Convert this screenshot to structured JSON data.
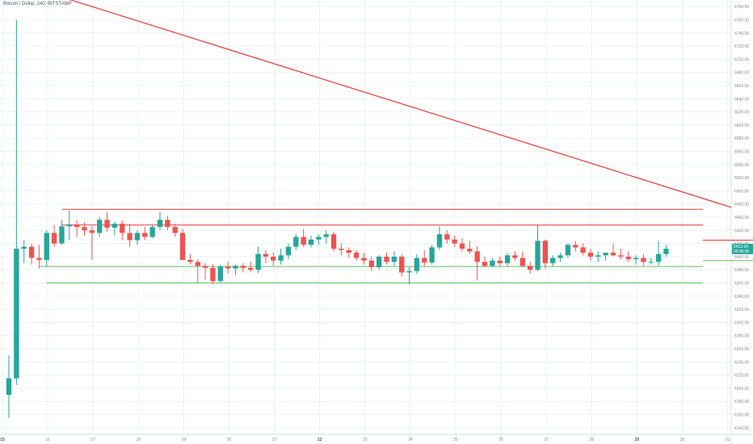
{
  "header": {
    "title": "Bitcoin / Dollar, 240, BITSTAMP"
  },
  "colors": {
    "up": "#26a69a",
    "down": "#ef5350",
    "grid": "#eef1f4",
    "resistance": "#e53935",
    "support": "#66bb6a",
    "price_tag": "#26a69a"
  },
  "chart_data": {
    "type": "candlestick",
    "title": "Bitcoin / Dollar, 240, BITSTAMP",
    "ylim": [
      6130,
      6790
    ],
    "y_ticks": [
      6140,
      6160,
      6180,
      6200,
      6220,
      6240,
      6260,
      6280,
      6300,
      6320,
      6340,
      6360,
      6380,
      6400,
      6420,
      6440,
      6460,
      6480,
      6500,
      6520,
      6540,
      6560,
      6580,
      6600,
      6620,
      6640,
      6660,
      6680,
      6700,
      6720,
      6740,
      6760,
      6780
    ],
    "x_labels": [
      "15",
      "16",
      "17",
      "18",
      "19",
      "20",
      "21",
      "22",
      "23",
      "24",
      "25",
      "26",
      "27",
      "28",
      "29",
      "30",
      "31"
    ],
    "x_bold": [
      "15",
      "22",
      "29"
    ],
    "last_price": {
      "value": 6412.34,
      "label": "6412.34",
      "sub_label": "00:40:45"
    },
    "candles": [
      {
        "o": 6190,
        "h": 6250,
        "l": 6155,
        "c": 6215
      },
      {
        "o": 6215,
        "h": 6760,
        "l": 6205,
        "c": 6412
      },
      {
        "o": 6412,
        "h": 6425,
        "l": 6390,
        "c": 6415
      },
      {
        "o": 6415,
        "h": 6420,
        "l": 6388,
        "c": 6398
      },
      {
        "o": 6398,
        "h": 6418,
        "l": 6382,
        "c": 6395
      },
      {
        "o": 6395,
        "h": 6440,
        "l": 6385,
        "c": 6436
      },
      {
        "o": 6436,
        "h": 6448,
        "l": 6415,
        "c": 6420
      },
      {
        "o": 6420,
        "h": 6456,
        "l": 6418,
        "c": 6446
      },
      {
        "o": 6446,
        "h": 6470,
        "l": 6425,
        "c": 6449
      },
      {
        "o": 6449,
        "h": 6455,
        "l": 6430,
        "c": 6445
      },
      {
        "o": 6445,
        "h": 6452,
        "l": 6432,
        "c": 6440
      },
      {
        "o": 6440,
        "h": 6446,
        "l": 6395,
        "c": 6436
      },
      {
        "o": 6436,
        "h": 6460,
        "l": 6430,
        "c": 6456
      },
      {
        "o": 6456,
        "h": 6468,
        "l": 6438,
        "c": 6444
      },
      {
        "o": 6444,
        "h": 6453,
        "l": 6432,
        "c": 6450
      },
      {
        "o": 6450,
        "h": 6455,
        "l": 6425,
        "c": 6436
      },
      {
        "o": 6436,
        "h": 6450,
        "l": 6415,
        "c": 6425
      },
      {
        "o": 6425,
        "h": 6440,
        "l": 6418,
        "c": 6436
      },
      {
        "o": 6436,
        "h": 6445,
        "l": 6425,
        "c": 6430
      },
      {
        "o": 6430,
        "h": 6448,
        "l": 6428,
        "c": 6445
      },
      {
        "o": 6445,
        "h": 6468,
        "l": 6440,
        "c": 6456
      },
      {
        "o": 6456,
        "h": 6462,
        "l": 6440,
        "c": 6445
      },
      {
        "o": 6445,
        "h": 6450,
        "l": 6430,
        "c": 6436
      },
      {
        "o": 6436,
        "h": 6442,
        "l": 6395,
        "c": 6395
      },
      {
        "o": 6395,
        "h": 6404,
        "l": 6388,
        "c": 6392
      },
      {
        "o": 6392,
        "h": 6396,
        "l": 6360,
        "c": 6386
      },
      {
        "o": 6386,
        "h": 6390,
        "l": 6365,
        "c": 6383
      },
      {
        "o": 6383,
        "h": 6388,
        "l": 6358,
        "c": 6363
      },
      {
        "o": 6363,
        "h": 6388,
        "l": 6360,
        "c": 6385
      },
      {
        "o": 6385,
        "h": 6392,
        "l": 6374,
        "c": 6382
      },
      {
        "o": 6382,
        "h": 6388,
        "l": 6372,
        "c": 6386
      },
      {
        "o": 6386,
        "h": 6390,
        "l": 6376,
        "c": 6383
      },
      {
        "o": 6383,
        "h": 6392,
        "l": 6376,
        "c": 6380
      },
      {
        "o": 6380,
        "h": 6415,
        "l": 6375,
        "c": 6404
      },
      {
        "o": 6404,
        "h": 6410,
        "l": 6390,
        "c": 6400
      },
      {
        "o": 6400,
        "h": 6406,
        "l": 6386,
        "c": 6394
      },
      {
        "o": 6394,
        "h": 6412,
        "l": 6388,
        "c": 6402
      },
      {
        "o": 6402,
        "h": 6420,
        "l": 6396,
        "c": 6415
      },
      {
        "o": 6415,
        "h": 6434,
        "l": 6410,
        "c": 6430
      },
      {
        "o": 6430,
        "h": 6442,
        "l": 6415,
        "c": 6418
      },
      {
        "o": 6418,
        "h": 6432,
        "l": 6414,
        "c": 6426
      },
      {
        "o": 6426,
        "h": 6434,
        "l": 6418,
        "c": 6430
      },
      {
        "o": 6430,
        "h": 6440,
        "l": 6420,
        "c": 6434
      },
      {
        "o": 6434,
        "h": 6438,
        "l": 6408,
        "c": 6412
      },
      {
        "o": 6412,
        "h": 6420,
        "l": 6402,
        "c": 6410
      },
      {
        "o": 6410,
        "h": 6414,
        "l": 6398,
        "c": 6406
      },
      {
        "o": 6406,
        "h": 6410,
        "l": 6394,
        "c": 6398
      },
      {
        "o": 6398,
        "h": 6406,
        "l": 6388,
        "c": 6394
      },
      {
        "o": 6394,
        "h": 6400,
        "l": 6378,
        "c": 6384
      },
      {
        "o": 6384,
        "h": 6402,
        "l": 6380,
        "c": 6400
      },
      {
        "o": 6400,
        "h": 6406,
        "l": 6388,
        "c": 6392
      },
      {
        "o": 6392,
        "h": 6408,
        "l": 6386,
        "c": 6400
      },
      {
        "o": 6400,
        "h": 6404,
        "l": 6370,
        "c": 6376
      },
      {
        "o": 6376,
        "h": 6384,
        "l": 6358,
        "c": 6378
      },
      {
        "o": 6378,
        "h": 6404,
        "l": 6374,
        "c": 6398
      },
      {
        "o": 6398,
        "h": 6410,
        "l": 6386,
        "c": 6391
      },
      {
        "o": 6391,
        "h": 6418,
        "l": 6388,
        "c": 6414
      },
      {
        "o": 6414,
        "h": 6446,
        "l": 6410,
        "c": 6434
      },
      {
        "o": 6434,
        "h": 6440,
        "l": 6420,
        "c": 6426
      },
      {
        "o": 6426,
        "h": 6432,
        "l": 6415,
        "c": 6420
      },
      {
        "o": 6420,
        "h": 6428,
        "l": 6408,
        "c": 6412
      },
      {
        "o": 6412,
        "h": 6424,
        "l": 6404,
        "c": 6408
      },
      {
        "o": 6408,
        "h": 6416,
        "l": 6364,
        "c": 6392
      },
      {
        "o": 6392,
        "h": 6400,
        "l": 6384,
        "c": 6386
      },
      {
        "o": 6386,
        "h": 6398,
        "l": 6384,
        "c": 6394
      },
      {
        "o": 6394,
        "h": 6400,
        "l": 6386,
        "c": 6390
      },
      {
        "o": 6390,
        "h": 6406,
        "l": 6386,
        "c": 6402
      },
      {
        "o": 6402,
        "h": 6408,
        "l": 6394,
        "c": 6398
      },
      {
        "o": 6398,
        "h": 6408,
        "l": 6384,
        "c": 6386
      },
      {
        "o": 6386,
        "h": 6392,
        "l": 6374,
        "c": 6380
      },
      {
        "o": 6380,
        "h": 6448,
        "l": 6378,
        "c": 6424
      },
      {
        "o": 6424,
        "h": 6426,
        "l": 6382,
        "c": 6390
      },
      {
        "o": 6390,
        "h": 6402,
        "l": 6386,
        "c": 6398
      },
      {
        "o": 6398,
        "h": 6406,
        "l": 6392,
        "c": 6402
      },
      {
        "o": 6402,
        "h": 6420,
        "l": 6398,
        "c": 6418
      },
      {
        "o": 6418,
        "h": 6424,
        "l": 6408,
        "c": 6414
      },
      {
        "o": 6414,
        "h": 6420,
        "l": 6402,
        "c": 6406
      },
      {
        "o": 6406,
        "h": 6412,
        "l": 6394,
        "c": 6400
      },
      {
        "o": 6400,
        "h": 6408,
        "l": 6392,
        "c": 6402
      },
      {
        "o": 6402,
        "h": 6406,
        "l": 6394,
        "c": 6406
      },
      {
        "o": 6406,
        "h": 6420,
        "l": 6400,
        "c": 6402
      },
      {
        "o": 6402,
        "h": 6412,
        "l": 6396,
        "c": 6400
      },
      {
        "o": 6400,
        "h": 6408,
        "l": 6392,
        "c": 6396
      },
      {
        "o": 6396,
        "h": 6402,
        "l": 6388,
        "c": 6398
      },
      {
        "o": 6398,
        "h": 6404,
        "l": 6386,
        "c": 6392
      },
      {
        "o": 6392,
        "h": 6398,
        "l": 6388,
        "c": 6392
      },
      {
        "o": 6392,
        "h": 6424,
        "l": 6386,
        "c": 6404
      },
      {
        "o": 6404,
        "h": 6418,
        "l": 6400,
        "c": 6412
      }
    ],
    "trendline": {
      "from": {
        "bar": 12,
        "value": 6800
      },
      "to": {
        "bar": 999,
        "value": 6475
      }
    },
    "levels": [
      {
        "kind": "resistance",
        "value": 6472,
        "from_bar": 7,
        "to_bar": 150
      },
      {
        "kind": "resistance",
        "value": 6448,
        "from_bar": 7,
        "to_bar": 150
      },
      {
        "kind": "resistance",
        "value": 6425,
        "from_bar": 110,
        "to_bar": 150
      },
      {
        "kind": "support",
        "value": 6394,
        "from_bar": 114,
        "to_bar": 150
      },
      {
        "kind": "support",
        "value": 6385,
        "from_bar": 4,
        "to_bar": 150
      },
      {
        "kind": "support",
        "value": 6360,
        "from_bar": 5,
        "to_bar": 150
      }
    ]
  }
}
